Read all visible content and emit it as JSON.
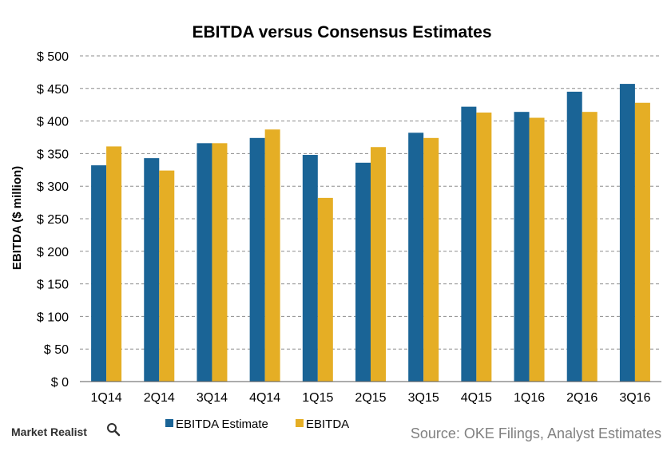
{
  "brand": {
    "name": "Market Realist",
    "icon": "magnifier-icon"
  },
  "source_note": "Source: OKE Filings, Analyst Estimates",
  "colors": {
    "estimate": "#1A6496",
    "actual": "#E5AE25",
    "grid": "#8C8C8C",
    "axis": "#595959"
  },
  "chart_data": {
    "type": "bar",
    "title": "EBITDA versus Consensus  Estimates",
    "xlabel": "",
    "ylabel": "EBITDA ($ million)",
    "ylim": [
      0,
      500
    ],
    "yticks": [
      0,
      50,
      100,
      150,
      200,
      250,
      300,
      350,
      400,
      450,
      500
    ],
    "ytick_labels": [
      "$ 0",
      "$ 50",
      "$ 100",
      "$ 150",
      "$ 200",
      "$ 250",
      "$ 300",
      "$ 350",
      "$ 400",
      "$ 450",
      "$ 500"
    ],
    "grid": true,
    "legend_position": "bottom",
    "categories": [
      "1Q14",
      "2Q14",
      "3Q14",
      "4Q14",
      "1Q15",
      "2Q15",
      "3Q15",
      "4Q15",
      "1Q16",
      "2Q16",
      "3Q16"
    ],
    "series": [
      {
        "name": "EBITDA Estimate",
        "values": [
          332,
          343,
          366,
          374,
          348,
          336,
          382,
          422,
          414,
          445,
          457
        ]
      },
      {
        "name": "EBITDA",
        "values": [
          361,
          324,
          366,
          387,
          282,
          360,
          374,
          413,
          405,
          414,
          428
        ]
      }
    ]
  }
}
